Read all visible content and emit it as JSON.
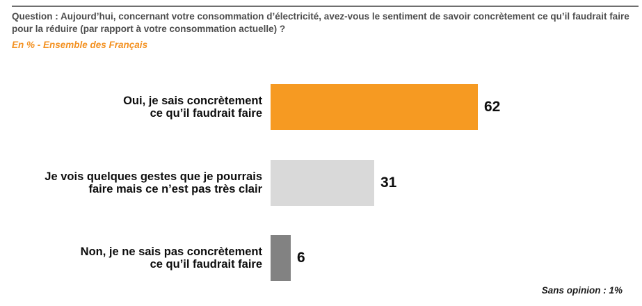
{
  "header": {
    "question": "Question : Aujourd’hui, concernant votre consommation d’électricité, avez-vous le sentiment de savoir concrètement ce qu’il faudrait faire\npour la réduire (par rapport à votre consommation actuelle) ?",
    "question_color": "#4d4d4d",
    "subtitle": "En % - Ensemble des Français",
    "subtitle_color": "#f39121"
  },
  "chart_data": {
    "type": "bar",
    "orientation": "horizontal",
    "unit": "%",
    "categories": [
      "Oui, je sais concrètement\nce qu’il faudrait faire",
      "Je vois quelques gestes que je pourrais\nfaire mais ce n’est pas très clair",
      "Non, je ne sais pas concrètement\nce qu’il faudrait faire"
    ],
    "values": [
      62,
      31,
      6
    ],
    "colors": [
      "#f69a22",
      "#d9d9d9",
      "#828282"
    ],
    "xlim": [
      0,
      100
    ],
    "axis_visible": false,
    "grid": false,
    "value_labels": true,
    "legend": "none"
  },
  "footnote": {
    "text": "Sans opinion : 1%",
    "color": "#1a1a1a"
  }
}
